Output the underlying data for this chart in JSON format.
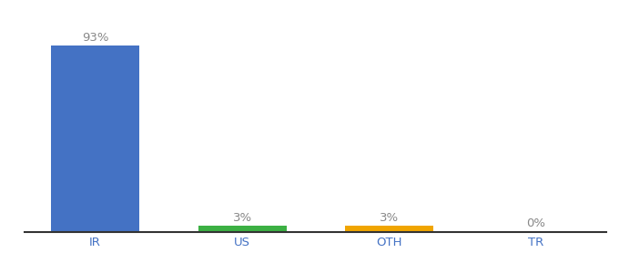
{
  "categories": [
    "IR",
    "US",
    "OTH",
    "TR"
  ],
  "values": [
    93,
    3,
    3,
    0
  ],
  "bar_colors": [
    "#4472c4",
    "#3cb043",
    "#f0a500",
    "#f0a500"
  ],
  "labels": [
    "93%",
    "3%",
    "3%",
    "0%"
  ],
  "xlabel_color": "#4472c4",
  "label_fontsize": 9.5,
  "xlabel_fontsize": 9.5,
  "label_color": "#888888",
  "background_color": "#ffffff",
  "ylim": [
    0,
    105
  ],
  "bar_width": 0.6,
  "figsize": [
    6.8,
    3.0
  ],
  "dpi": 100
}
